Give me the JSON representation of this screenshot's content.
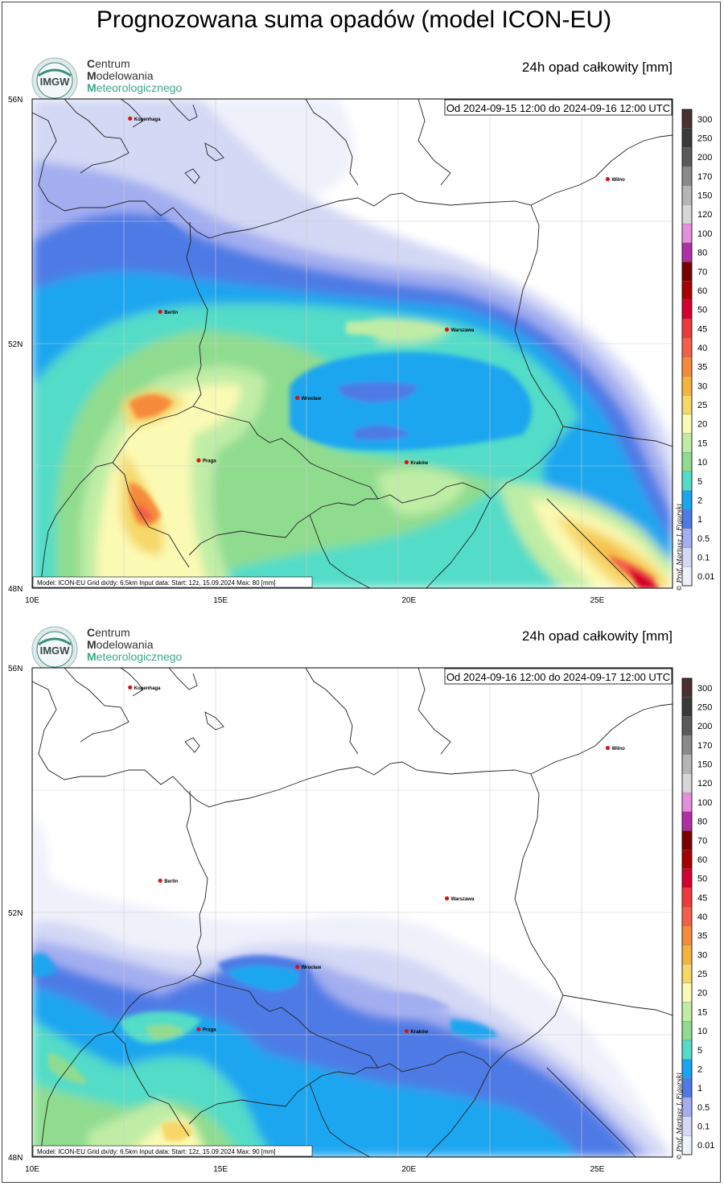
{
  "main_title": "Prognozowana suma opadów (model ICON-EU)",
  "logo": {
    "badge_text": "IMGW",
    "line1_initial": "C",
    "line1_rest": "entrum",
    "line2_initial": "M",
    "line2_rest": "odelowania",
    "line3_initial": "M",
    "line3_rest": "eteorologicznego"
  },
  "colorbar_levels": [
    "300",
    "250",
    "200",
    "170",
    "150",
    "120",
    "100",
    "80",
    "70",
    "60",
    "50",
    "45",
    "40",
    "35",
    "30",
    "25",
    "20",
    "15",
    "10",
    "5",
    "2",
    "1",
    "0.5",
    "0.1",
    "0.01"
  ],
  "colorbar_colors": [
    "#4b3131",
    "#3a3a3a",
    "#5a5a5a",
    "#8a8a8a",
    "#b5b5b5",
    "#d7d7d7",
    "#e58fdc",
    "#b12fa4",
    "#7a0000",
    "#a80000",
    "#d5002f",
    "#ed3a3a",
    "#f2604a",
    "#f58a3a",
    "#f4b33c",
    "#f6d768",
    "#fbfab4",
    "#c0eda6",
    "#8fdc8f",
    "#53dcc8",
    "#1aa6ef",
    "#4e7ae5",
    "#a3aef0",
    "#d3d8f5",
    "#eef0fa"
  ],
  "axes": {
    "lat_labels": [
      "56N",
      "52N",
      "48N"
    ],
    "lon_labels": [
      "10E",
      "15E",
      "20E",
      "25E"
    ]
  },
  "cities": [
    {
      "name": "Kopenhaga",
      "lon": 12.6,
      "lat": 55.68
    },
    {
      "name": "Wilno",
      "lon": 25.28,
      "lat": 54.69
    },
    {
      "name": "Berlin",
      "lon": 13.4,
      "lat": 52.52
    },
    {
      "name": "Warszawa",
      "lon": 21.01,
      "lat": 52.23
    },
    {
      "name": "Wrocław",
      "lon": 17.04,
      "lat": 51.11
    },
    {
      "name": "Praga",
      "lon": 14.42,
      "lat": 50.09
    },
    {
      "name": "Kraków",
      "lon": 19.94,
      "lat": 50.06
    }
  ],
  "credit": "© Prof. Mariusz J. Figurski",
  "panels": [
    {
      "var_label": "24h opad całkowity [mm]",
      "period": "Od 2024-09-15 12:00 do 2024-09-16 12:00 UTC",
      "footer": "Model: ICON-EU  Grid dx/dy: 6.5km  Input data: Start: 12z, 15.09.2024  Max: 80 [mm]"
    },
    {
      "var_label": "24h opad całkowity [mm]",
      "period": "Od 2024-09-16 12:00 do 2024-09-17 12:00 UTC",
      "footer": "Model: ICON-EU  Grid dx/dy: 6.5km  Input data: Start: 12z, 15.09.2024  Max: 90 [mm]"
    }
  ]
}
